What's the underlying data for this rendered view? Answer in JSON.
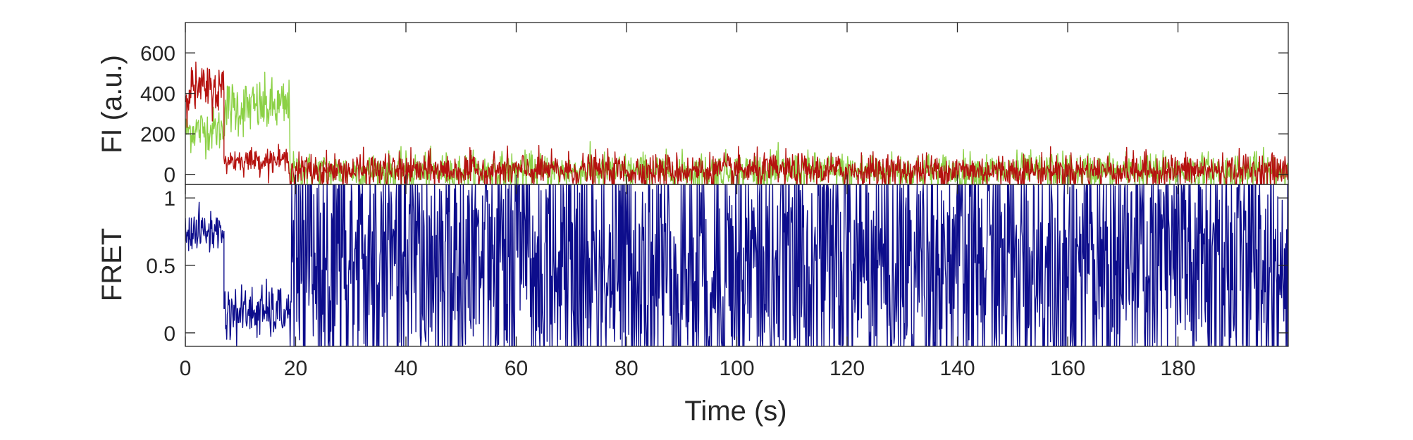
{
  "chart_data": [
    {
      "type": "line",
      "ylabel": "FI (a.u.)",
      "xlim": [
        0,
        200
      ],
      "ylim": [
        -50,
        750
      ],
      "xticks": [
        0,
        20,
        40,
        60,
        80,
        100,
        120,
        140,
        160,
        180
      ],
      "yticks": [
        0,
        200,
        400,
        600
      ],
      "ytick_labels": [
        "0",
        "200",
        "400",
        "600"
      ],
      "grid": false,
      "series": [
        {
          "color": "#8CD146",
          "segments": [
            {
              "t": [
                0,
                7
              ],
              "mean": 220,
              "noise": 55
            },
            {
              "t": [
                7,
                19
              ],
              "mean": 330,
              "noise": 70
            },
            {
              "t": [
                19,
                200
              ],
              "mean": 15,
              "noise": 45
            }
          ]
        },
        {
          "color": "#B5120F",
          "segments": [
            {
              "t": [
                0,
                7
              ],
              "mean": 420,
              "noise": 60
            },
            {
              "t": [
                7,
                19
              ],
              "mean": 70,
              "noise": 30
            },
            {
              "t": [
                19,
                200
              ],
              "mean": 18,
              "noise": 42
            }
          ]
        }
      ]
    },
    {
      "type": "line",
      "xlabel": "Time (s)",
      "ylabel": "FRET",
      "xlim": [
        0,
        200
      ],
      "ylim": [
        -0.1,
        1.1
      ],
      "xticks": [
        0,
        20,
        40,
        60,
        80,
        100,
        120,
        140,
        160,
        180
      ],
      "xtick_labels": [
        "0",
        "20",
        "40",
        "60",
        "80",
        "100",
        "120",
        "140",
        "160",
        "180"
      ],
      "yticks": [
        0,
        0.5,
        1
      ],
      "ytick_labels": [
        "0",
        "0.5",
        "1"
      ],
      "grid": false,
      "series": [
        {
          "color": "#0D0D8C",
          "segments": [
            {
              "t": [
                0,
                7
              ],
              "mean": 0.75,
              "noise": 0.08
            },
            {
              "t": [
                7,
                19
              ],
              "mean": 0.15,
              "noise": 0.1
            },
            {
              "t": [
                19,
                200
              ],
              "mean": 0.5,
              "noise": 0.6,
              "clipped_to": [
                -0.1,
                1.1
              ]
            }
          ]
        }
      ]
    }
  ]
}
